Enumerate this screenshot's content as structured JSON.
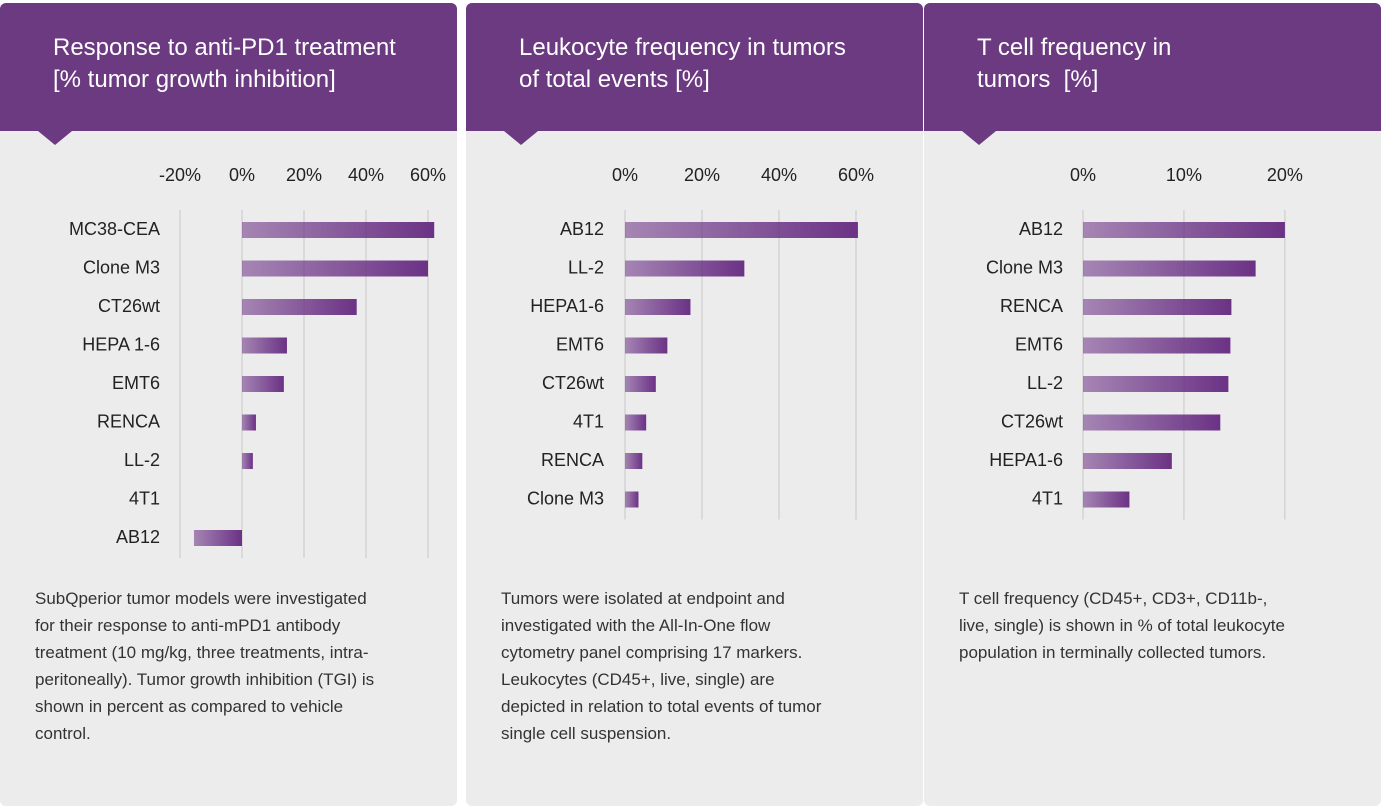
{
  "chart_data": [
    {
      "type": "bar",
      "orientation": "horizontal",
      "title": [
        "Response to anti-PD1 treatment",
        "[% tumor growth inhibition]"
      ],
      "categories": [
        "MC38-CEA",
        "Clone M3",
        "CT26wt",
        "HEPA 1-6",
        "EMT6",
        "RENCA",
        "LL-2",
        "4T1",
        "AB12"
      ],
      "values": [
        62,
        60,
        37,
        14.5,
        13.5,
        4.5,
        3.5,
        0,
        -15.5
      ],
      "color": "#6b3285",
      "xlim": [
        -20,
        65
      ],
      "xticks": [
        {
          "value": -20,
          "label": "-20%"
        },
        {
          "value": 0,
          "label": "0%"
        },
        {
          "value": 20,
          "label": "20%"
        },
        {
          "value": 40,
          "label": "40%"
        },
        {
          "value": 60,
          "label": "60%"
        }
      ],
      "grid": true,
      "note": "SubQperior tumor models were investigated for their response to anti-mPD1 antibody treatment (10 mg/kg, three treatments, intra-peritoneally). Tumor growth inhibition (TGI) is shown in percent as compared to vehicle control."
    },
    {
      "type": "bar",
      "orientation": "horizontal",
      "title": [
        "Leukocyte frequency in tumors",
        "of total events [%]"
      ],
      "categories": [
        "AB12",
        "LL-2",
        "HEPA1-6",
        "EMT6",
        "CT26wt",
        "4T1",
        "RENCA",
        "Clone M3"
      ],
      "values": [
        60.5,
        31,
        17,
        11,
        8,
        5.5,
        4.5,
        3.5
      ],
      "color": "#6b3285",
      "xlim": [
        0,
        62
      ],
      "xticks": [
        {
          "value": 0,
          "label": "0%"
        },
        {
          "value": 20,
          "label": "20%"
        },
        {
          "value": 40,
          "label": "40%"
        },
        {
          "value": 60,
          "label": "60%"
        }
      ],
      "grid": true,
      "note": "Tumors were isolated at endpoint and investigated with the All-In-One flow cytometry panel comprising 17 markers. Leukocytes (CD45+, live, single) are depicted in relation to total events of tumor single cell suspension."
    },
    {
      "type": "bar",
      "orientation": "horizontal",
      "title": [
        "T cell frequency in",
        "tumors  [%]"
      ],
      "categories": [
        "AB12",
        "Clone M3",
        "RENCA",
        "EMT6",
        "LL-2",
        "CT26wt",
        "HEPA1-6",
        "4T1"
      ],
      "values": [
        20,
        17.1,
        14.7,
        14.6,
        14.4,
        13.6,
        8.8,
        4.6
      ],
      "color": "#6b3285",
      "xlim": [
        0,
        21
      ],
      "xticks": [
        {
          "value": 0,
          "label": "0%"
        },
        {
          "value": 10,
          "label": "10%"
        },
        {
          "value": 20,
          "label": "20%"
        }
      ],
      "grid": true,
      "note": "T cell frequency (CD45+, CD3+, CD11b-, live, single) is shown in % of total leukocyte population in terminally collected tumors."
    }
  ]
}
